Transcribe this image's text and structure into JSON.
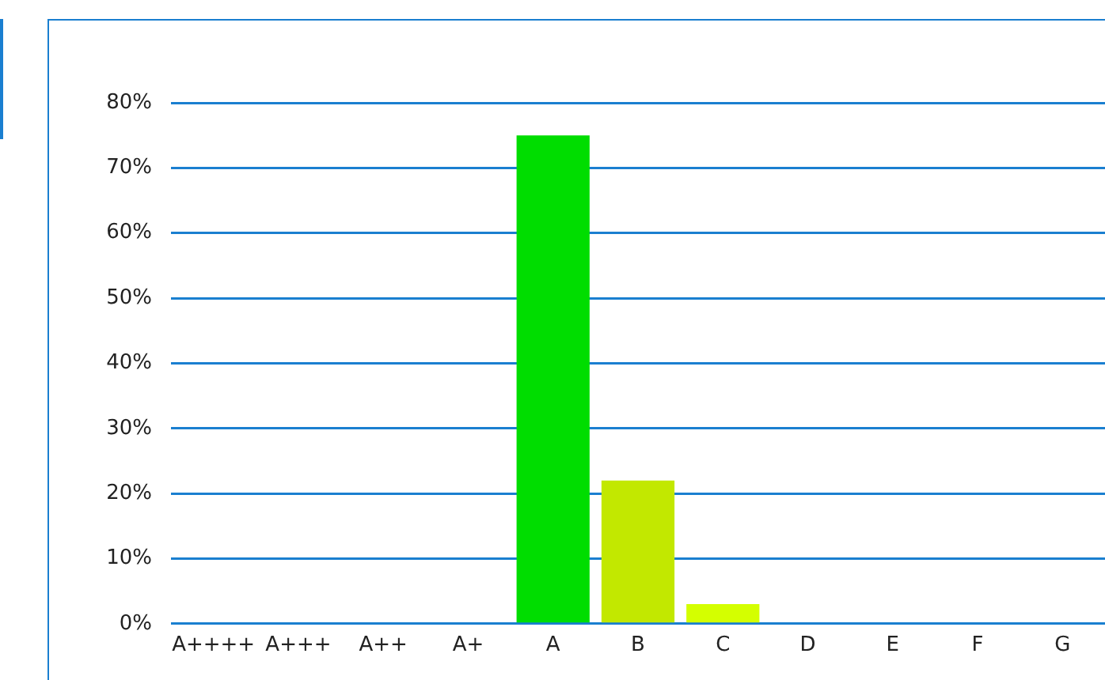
{
  "chart_data": {
    "type": "bar",
    "categories": [
      "A++++",
      "A+++",
      "A++",
      "A+",
      "A",
      "B",
      "C",
      "D",
      "E",
      "F",
      "G"
    ],
    "values": [
      0,
      0,
      0,
      0,
      75,
      22,
      3,
      0,
      0,
      0,
      0
    ],
    "colors": [
      "#00dd00",
      "#00dd00",
      "#00dd00",
      "#00dd00",
      "#00dd00",
      "#c2e800",
      "#d4ff00",
      "#d4ff00",
      "#d4ff00",
      "#d4ff00",
      "#d4ff00"
    ],
    "ylim": [
      0,
      80
    ],
    "yticks": [
      {
        "value": 0,
        "label": "0%"
      },
      {
        "value": 10,
        "label": "10%"
      },
      {
        "value": 20,
        "label": "20%"
      },
      {
        "value": 30,
        "label": "30%"
      },
      {
        "value": 40,
        "label": "40%"
      },
      {
        "value": 50,
        "label": "50%"
      },
      {
        "value": 60,
        "label": "60%"
      },
      {
        "value": 70,
        "label": "70%"
      },
      {
        "value": 80,
        "label": "80%"
      }
    ],
    "grid": "y",
    "legend": false
  }
}
